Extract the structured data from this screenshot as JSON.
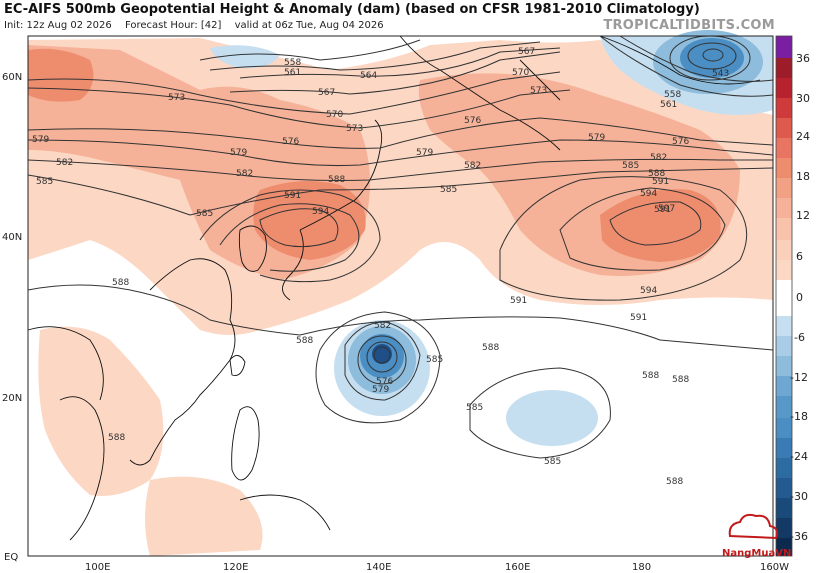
{
  "title": "EC-AIFS 500mb Geopotential Height & Anomaly (dam) (based on CFSR 1981-2010 Climatology)",
  "init": "Init: 12z Aug 02 2026",
  "forecast_hour": "Forecast Hour: [42]",
  "valid": "valid at 06z Tue, Aug 04 2026",
  "watermark": "TROPICALTIDBITS.COM",
  "logo": "NangMuaVN",
  "lat_labels": [
    "60N",
    "40N",
    "20N",
    "EQ"
  ],
  "lon_labels": [
    "100E",
    "120E",
    "140E",
    "160E",
    "180",
    "160W"
  ],
  "colorbar_labels": [
    "36",
    "30",
    "24",
    "18",
    "12",
    "6",
    "0",
    "-6",
    "-12",
    "-18",
    "-24",
    "-30",
    "-36"
  ],
  "contour_labels": {
    "l558a": "558",
    "l561a": "561",
    "l564": "564",
    "l567a": "567",
    "l567b": "567",
    "l570a": "570",
    "l570b": "570",
    "l573a": "573",
    "l573b": "573",
    "l573c": "573",
    "l576a": "576",
    "l576b": "576",
    "l576c": "576",
    "l579a": "579",
    "l579b": "579",
    "l579c": "579",
    "l579d": "579",
    "l582a": "582",
    "l582b": "582",
    "l582c": "582",
    "l582d": "582",
    "l582e": "582",
    "l585a": "585",
    "l585b": "585",
    "l585c": "585",
    "l585d": "585",
    "l585e": "585",
    "l585f": "585",
    "l585g": "585",
    "l588a": "588",
    "l588b": "588",
    "l588c": "588",
    "l588d": "588",
    "l588e": "588",
    "l588f": "588",
    "l588g": "588",
    "l588h": "588",
    "l588i": "588",
    "l591a": "591",
    "l591b": "591",
    "l591c": "591",
    "l591d": "591",
    "l591e": "591",
    "l594a": "594",
    "l594b": "594",
    "l594c": "594",
    "l597": "597",
    "l543": "543",
    "l558b": "558",
    "l561b": "561",
    "l576d": "576",
    "l579e": "579"
  },
  "colors": {
    "pos_light": "#fcd7c4",
    "pos_mid": "#f6b298",
    "pos_strong": "#ee8c6e",
    "neg_light": "#c6dff0",
    "neg_mid": "#8dbcdc",
    "neg_strong": "#4a8ec4",
    "neg_core": "#2d6ba3"
  }
}
